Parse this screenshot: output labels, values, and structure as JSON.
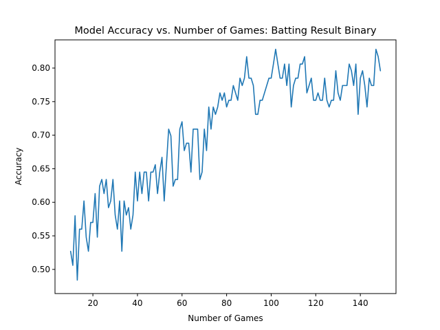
{
  "chart_data": {
    "type": "line",
    "title": "Model Accuracy vs. Number of Games: Batting Result Binary",
    "xlabel": "Number of Games",
    "ylabel": "Accuracy",
    "xlim": [
      3,
      156
    ],
    "ylim": [
      0.464,
      0.842
    ],
    "xticks": [
      20,
      40,
      60,
      80,
      100,
      120,
      140
    ],
    "yticks": [
      0.5,
      0.55,
      0.6,
      0.65,
      0.7,
      0.75,
      0.8
    ],
    "ytick_labels": [
      "0.50",
      "0.55",
      "0.60",
      "0.65",
      "0.70",
      "0.75",
      "0.80"
    ],
    "grid": false,
    "legend": "none",
    "line_color": "#1f77b4",
    "series": [
      {
        "x": [
          10,
          11,
          12,
          13,
          14,
          15,
          16,
          17,
          18,
          19,
          20,
          21,
          22,
          23,
          24,
          25,
          26,
          27,
          28,
          29,
          30,
          31,
          32,
          33,
          34,
          35,
          36,
          37,
          38,
          39,
          40,
          41,
          42,
          43,
          44,
          45,
          46,
          47,
          48,
          49,
          50,
          51,
          52,
          53,
          54,
          55,
          56,
          57,
          58,
          59,
          60,
          61,
          62,
          63,
          64,
          65,
          66,
          67,
          68,
          69,
          70,
          71,
          72,
          73,
          74,
          75,
          76,
          77,
          78,
          79,
          80,
          81,
          82,
          83,
          84,
          85,
          86,
          87,
          88,
          89,
          90,
          91,
          92,
          93,
          94,
          95,
          96,
          97,
          98,
          99,
          100,
          101,
          102,
          103,
          104,
          105,
          106,
          107,
          108,
          109,
          110,
          111,
          112,
          113,
          114,
          115,
          116,
          117,
          118,
          119,
          120,
          121,
          122,
          123,
          124,
          125,
          126,
          127,
          128,
          129,
          130,
          131,
          132,
          133,
          134,
          135,
          136,
          137,
          138,
          139,
          140,
          141,
          142,
          143,
          144,
          145,
          146,
          147,
          148,
          149
        ],
        "values": [
          0.527,
          0.506,
          0.58,
          0.484,
          0.56,
          0.56,
          0.602,
          0.548,
          0.527,
          0.57,
          0.57,
          0.613,
          0.548,
          0.624,
          0.634,
          0.613,
          0.634,
          0.592,
          0.602,
          0.634,
          0.581,
          0.56,
          0.602,
          0.527,
          0.602,
          0.581,
          0.592,
          0.56,
          0.581,
          0.645,
          0.602,
          0.645,
          0.613,
          0.645,
          0.645,
          0.602,
          0.645,
          0.645,
          0.656,
          0.613,
          0.645,
          0.667,
          0.602,
          0.656,
          0.709,
          0.699,
          0.624,
          0.634,
          0.634,
          0.709,
          0.72,
          0.677,
          0.688,
          0.688,
          0.645,
          0.709,
          0.709,
          0.709,
          0.634,
          0.645,
          0.709,
          0.677,
          0.742,
          0.709,
          0.742,
          0.731,
          0.742,
          0.763,
          0.752,
          0.763,
          0.742,
          0.752,
          0.752,
          0.774,
          0.763,
          0.752,
          0.785,
          0.774,
          0.785,
          0.817,
          0.785,
          0.785,
          0.774,
          0.731,
          0.731,
          0.752,
          0.752,
          0.763,
          0.774,
          0.785,
          0.785,
          0.806,
          0.828,
          0.806,
          0.785,
          0.785,
          0.806,
          0.774,
          0.806,
          0.742,
          0.774,
          0.785,
          0.785,
          0.806,
          0.806,
          0.817,
          0.763,
          0.774,
          0.785,
          0.752,
          0.752,
          0.763,
          0.752,
          0.752,
          0.785,
          0.752,
          0.742,
          0.752,
          0.752,
          0.796,
          0.763,
          0.752,
          0.774,
          0.774,
          0.774,
          0.806,
          0.796,
          0.774,
          0.806,
          0.731,
          0.785,
          0.796,
          0.774,
          0.742,
          0.785,
          0.774,
          0.774,
          0.828,
          0.817,
          0.796
        ]
      }
    ]
  }
}
